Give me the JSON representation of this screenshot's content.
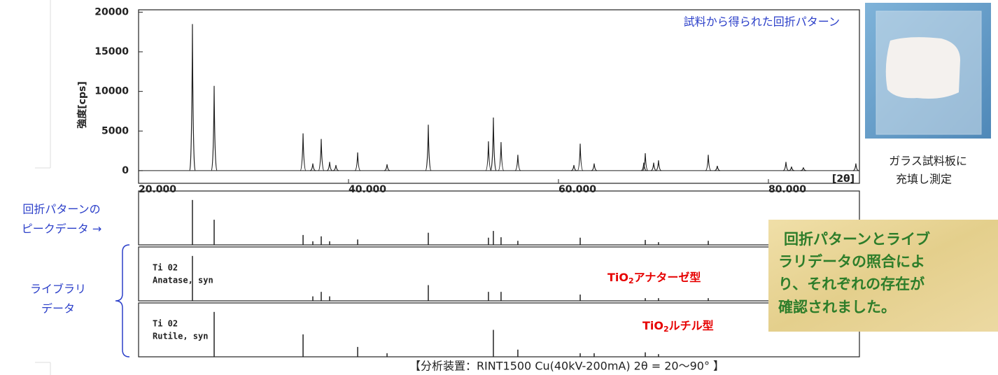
{
  "chart_data": [
    {
      "type": "peaks",
      "title": "試料から得られた回折パターン",
      "y_label": "強度[cps]",
      "x_label": "[2θ]",
      "x": [
        25.13,
        27.2,
        35.67,
        36.6,
        37.4,
        38.2,
        38.8,
        40.87,
        43.67,
        47.6,
        53.33,
        53.8,
        54.53,
        56.13,
        61.47,
        62.07,
        63.4,
        68.13,
        68.27,
        69.07,
        69.53,
        74.27,
        75.13,
        81.67,
        82.2,
        83.33,
        88.33
      ],
      "values": [
        18500,
        10700,
        4700,
        900,
        4000,
        1100,
        700,
        2300,
        800,
        5800,
        3700,
        6700,
        3600,
        2000,
        700,
        3400,
        900,
        1000,
        2200,
        1000,
        1300,
        2000,
        600,
        1100,
        500,
        400,
        900
      ],
      "color": "#222222",
      "xlim": [
        20,
        88.67
      ],
      "xticks": [
        {
          "value": 20,
          "label": "20.000"
        },
        {
          "value": 40,
          "label": "40.000"
        },
        {
          "value": 60,
          "label": "60.000"
        },
        {
          "value": 80,
          "label": "80.000"
        }
      ],
      "ylim": [
        -1600,
        20300
      ],
      "yticks": [
        0,
        5000,
        10000,
        15000,
        20000
      ]
    },
    {
      "type": "stick",
      "title": "回折パターンの",
      "subtitle": "ピークデータ →",
      "x": [
        25.13,
        27.2,
        35.67,
        36.6,
        37.4,
        38.2,
        40.87,
        47.6,
        53.33,
        53.8,
        54.53,
        56.13,
        62.07,
        68.27,
        69.53,
        74.27
      ],
      "values": [
        100,
        56,
        22,
        8,
        19,
        8,
        12,
        27,
        16,
        31,
        17,
        9,
        16,
        11,
        6,
        9
      ],
      "color": "#222222",
      "xlim": [
        20,
        88.67
      ],
      "ylim": [
        0,
        120
      ]
    },
    {
      "type": "stick",
      "title": "Ti 02",
      "subtitle": "Anatase, syn",
      "x": [
        25.13,
        36.6,
        37.4,
        38.2,
        47.6,
        53.33,
        54.53,
        62.07,
        68.27,
        69.53,
        74.27
      ],
      "values": [
        100,
        10,
        20,
        10,
        35,
        20,
        20,
        14,
        6,
        6,
        6
      ],
      "color": "#222222",
      "xlim": [
        20,
        88.67
      ],
      "ylim": [
        0,
        120
      ]
    },
    {
      "type": "stick",
      "title": "Ti 02",
      "subtitle": "Rutile, syn",
      "x": [
        27.2,
        35.67,
        40.87,
        43.67,
        53.8,
        56.13,
        62.07,
        63.4,
        68.27,
        69.53
      ],
      "values": [
        100,
        50,
        22,
        8,
        60,
        16,
        8,
        8,
        10,
        6
      ],
      "color": "#222222",
      "xlim": [
        20,
        88.67
      ],
      "ylim": [
        0,
        120
      ]
    }
  ],
  "annotations": {
    "library": [
      "ライブラリ",
      "データ"
    ],
    "anatase_label": [
      "TiO",
      "2",
      "アナターゼ型"
    ],
    "rutile_label": [
      "TiO",
      "2",
      "ルチル型"
    ],
    "photo_caption": [
      "ガラス試料板に",
      "充填し測定"
    ],
    "conclusion": [
      "回折パターンとライブ",
      "ラリデータの照合によ",
      "り、それぞれの存在が",
      "確認されました。"
    ],
    "footer": "【分析装置：RINT1500  Cu(40kV-200mA)  2θ = 20～90° 】"
  }
}
